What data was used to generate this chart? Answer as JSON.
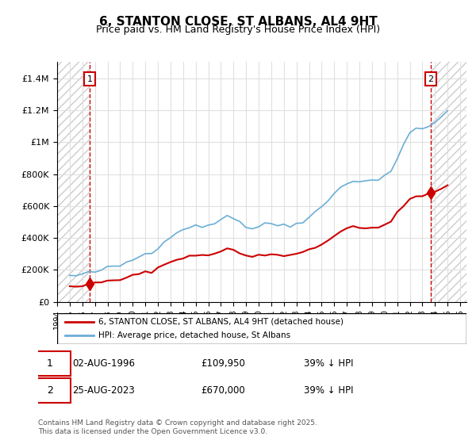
{
  "title": "6, STANTON CLOSE, ST ALBANS, AL4 9HT",
  "subtitle": "Price paid vs. HM Land Registry's House Price Index (HPI)",
  "legend_line1": "6, STANTON CLOSE, ST ALBANS, AL4 9HT (detached house)",
  "legend_line2": "HPI: Average price, detached house, St Albans",
  "marker1_label": "1",
  "marker1_date": "02-AUG-1996",
  "marker1_price": "£109,950",
  "marker1_hpi": "39% ↓ HPI",
  "marker2_label": "2",
  "marker2_date": "25-AUG-2023",
  "marker2_price": "£670,000",
  "marker2_hpi": "39% ↓ HPI",
  "footer": "Contains HM Land Registry data © Crown copyright and database right 2025.\nThis data is licensed under the Open Government Licence v3.0.",
  "hpi_color": "#6baed6",
  "price_color": "#cc0000",
  "marker_color": "#cc0000",
  "dashed_line_color": "#cc0000",
  "hatch_color": "#c0c0c0",
  "ylim": [
    0,
    1500000
  ],
  "xlim_start": 1994.0,
  "xlim_end": 2026.5,
  "marker1_x": 1996.583,
  "marker2_x": 2023.646,
  "background_color": "#ffffff"
}
